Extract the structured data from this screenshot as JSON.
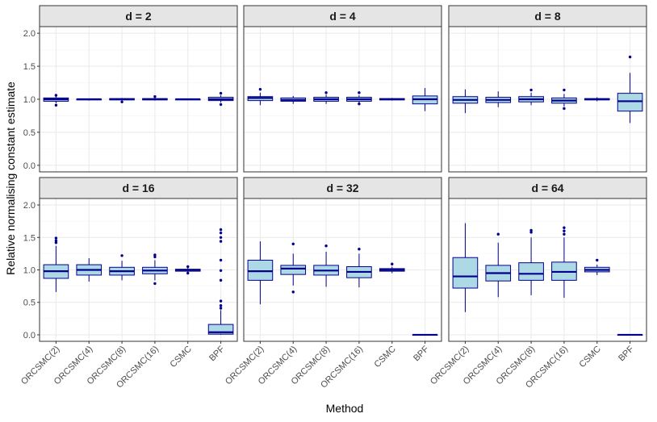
{
  "chart_data": {
    "type": "box",
    "xlabel": "Method",
    "ylabel": "Relative normalising constant estimate",
    "ylim": [
      -0.1,
      2.1
    ],
    "yticks": [
      0.0,
      0.5,
      1.0,
      1.5,
      2.0
    ],
    "ytick_labels": [
      "0.0",
      "0.5",
      "1.0",
      "1.5",
      "2.0"
    ],
    "categories": [
      "ORCSMC(2)",
      "ORCSMC(4)",
      "ORCSMC(8)",
      "ORCSMC(16)",
      "CSMC",
      "BPF"
    ],
    "colors": {
      "box_fill": "#add8e6",
      "box_stroke": "#00008b",
      "strip_bg": "#e5e5e5",
      "grid_major": "#ebebeb",
      "grid_minor": "#f5f5f5",
      "panel_border": "#333333"
    },
    "panels": [
      {
        "title": "d = 2",
        "boxes": [
          {
            "q1": 0.97,
            "median": 1.0,
            "q3": 1.02,
            "wlo": 0.94,
            "whi": 1.05,
            "outliers": [
              0.91,
              1.06
            ]
          },
          {
            "q1": 0.99,
            "median": 1.0,
            "q3": 1.0,
            "wlo": 0.98,
            "whi": 1.01,
            "outliers": []
          },
          {
            "q1": 0.99,
            "median": 1.0,
            "q3": 1.01,
            "wlo": 0.98,
            "whi": 1.02,
            "outliers": [
              0.96
            ]
          },
          {
            "q1": 0.99,
            "median": 1.0,
            "q3": 1.01,
            "wlo": 0.98,
            "whi": 1.02,
            "outliers": [
              1.04
            ]
          },
          {
            "q1": 0.99,
            "median": 1.0,
            "q3": 1.0,
            "wlo": 0.99,
            "whi": 1.01,
            "outliers": []
          },
          {
            "q1": 0.98,
            "median": 1.0,
            "q3": 1.03,
            "wlo": 0.95,
            "whi": 1.06,
            "outliers": [
              0.92,
              1.09
            ]
          }
        ]
      },
      {
        "title": "d = 4",
        "boxes": [
          {
            "q1": 0.98,
            "median": 1.02,
            "q3": 1.04,
            "wlo": 0.91,
            "whi": 1.1,
            "outliers": [
              1.15
            ]
          },
          {
            "q1": 0.97,
            "median": 0.99,
            "q3": 1.02,
            "wlo": 0.93,
            "whi": 1.05,
            "outliers": []
          },
          {
            "q1": 0.97,
            "median": 1.0,
            "q3": 1.03,
            "wlo": 0.93,
            "whi": 1.07,
            "outliers": [
              1.1
            ]
          },
          {
            "q1": 0.97,
            "median": 1.0,
            "q3": 1.03,
            "wlo": 0.93,
            "whi": 1.06,
            "outliers": [
              1.1,
              0.93
            ]
          },
          {
            "q1": 0.99,
            "median": 1.0,
            "q3": 1.01,
            "wlo": 0.98,
            "whi": 1.02,
            "outliers": []
          },
          {
            "q1": 0.93,
            "median": 1.0,
            "q3": 1.05,
            "wlo": 0.82,
            "whi": 1.17,
            "outliers": []
          }
        ]
      },
      {
        "title": "d = 8",
        "boxes": [
          {
            "q1": 0.94,
            "median": 0.99,
            "q3": 1.04,
            "wlo": 0.79,
            "whi": 1.15,
            "outliers": []
          },
          {
            "q1": 0.95,
            "median": 0.99,
            "q3": 1.03,
            "wlo": 0.88,
            "whi": 1.12,
            "outliers": []
          },
          {
            "q1": 0.96,
            "median": 1.0,
            "q3": 1.04,
            "wlo": 0.91,
            "whi": 1.1,
            "outliers": [
              1.14
            ]
          },
          {
            "q1": 0.94,
            "median": 0.98,
            "q3": 1.02,
            "wlo": 0.89,
            "whi": 1.08,
            "outliers": [
              1.14,
              0.86
            ]
          },
          {
            "q1": 0.99,
            "median": 1.0,
            "q3": 1.01,
            "wlo": 0.97,
            "whi": 1.03,
            "outliers": []
          },
          {
            "q1": 0.82,
            "median": 0.97,
            "q3": 1.09,
            "wlo": 0.64,
            "whi": 1.4,
            "outliers": [
              1.64
            ]
          }
        ]
      },
      {
        "title": "d = 16",
        "boxes": [
          {
            "q1": 0.87,
            "median": 0.98,
            "q3": 1.08,
            "wlo": 0.66,
            "whi": 1.37,
            "outliers": [
              1.42,
              1.45,
              1.49
            ]
          },
          {
            "q1": 0.92,
            "median": 1.0,
            "q3": 1.08,
            "wlo": 0.82,
            "whi": 1.18,
            "outliers": []
          },
          {
            "q1": 0.92,
            "median": 0.98,
            "q3": 1.04,
            "wlo": 0.84,
            "whi": 1.14,
            "outliers": [
              1.22
            ]
          },
          {
            "q1": 0.94,
            "median": 0.99,
            "q3": 1.04,
            "wlo": 0.84,
            "whi": 1.15,
            "outliers": [
              1.2,
              1.23,
              0.79
            ]
          },
          {
            "q1": 0.98,
            "median": 1.0,
            "q3": 1.01,
            "wlo": 0.96,
            "whi": 1.03,
            "outliers": [
              1.05,
              0.95
            ]
          },
          {
            "q1": 0.01,
            "median": 0.04,
            "q3": 0.16,
            "wlo": 0.0,
            "whi": 0.38,
            "outliers": [
              0.41,
              0.45,
              0.52,
              0.84,
              0.99,
              1.15,
              1.44,
              1.5,
              1.57,
              1.62
            ]
          }
        ]
      },
      {
        "title": "d = 32",
        "boxes": [
          {
            "q1": 0.84,
            "median": 0.98,
            "q3": 1.15,
            "wlo": 0.47,
            "whi": 1.44,
            "outliers": []
          },
          {
            "q1": 0.93,
            "median": 1.02,
            "q3": 1.07,
            "wlo": 0.76,
            "whi": 1.25,
            "outliers": [
              1.4,
              0.66
            ]
          },
          {
            "q1": 0.92,
            "median": 0.99,
            "q3": 1.07,
            "wlo": 0.74,
            "whi": 1.28,
            "outliers": [
              1.37
            ]
          },
          {
            "q1": 0.88,
            "median": 0.97,
            "q3": 1.05,
            "wlo": 0.73,
            "whi": 1.25,
            "outliers": [
              1.32
            ]
          },
          {
            "q1": 0.98,
            "median": 1.0,
            "q3": 1.02,
            "wlo": 0.95,
            "whi": 1.05,
            "outliers": [
              1.09
            ]
          },
          {
            "q1": 0.0,
            "median": 0.0,
            "q3": 0.0,
            "wlo": 0.0,
            "whi": 0.0,
            "outliers": []
          }
        ]
      },
      {
        "title": "d = 64",
        "boxes": [
          {
            "q1": 0.72,
            "median": 0.9,
            "q3": 1.19,
            "wlo": 0.35,
            "whi": 1.72,
            "outliers": []
          },
          {
            "q1": 0.83,
            "median": 0.95,
            "q3": 1.07,
            "wlo": 0.58,
            "whi": 1.42,
            "outliers": [
              1.55
            ]
          },
          {
            "q1": 0.84,
            "median": 0.94,
            "q3": 1.11,
            "wlo": 0.61,
            "whi": 1.5,
            "outliers": [
              1.58,
              1.61
            ]
          },
          {
            "q1": 0.84,
            "median": 0.97,
            "q3": 1.12,
            "wlo": 0.57,
            "whi": 1.5,
            "outliers": [
              1.55,
              1.6,
              1.65
            ]
          },
          {
            "q1": 0.97,
            "median": 1.0,
            "q3": 1.04,
            "wlo": 0.92,
            "whi": 1.08,
            "outliers": [
              1.15
            ]
          },
          {
            "q1": 0.0,
            "median": 0.0,
            "q3": 0.0,
            "wlo": 0.0,
            "whi": 0.0,
            "outliers": []
          }
        ]
      }
    ]
  }
}
